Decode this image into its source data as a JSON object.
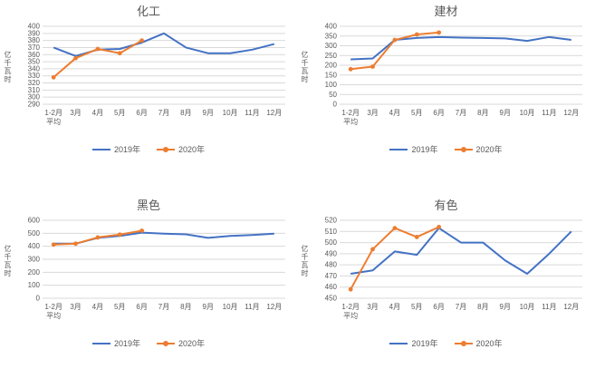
{
  "legend": {
    "s2019": "2019年",
    "s2020": "2020年"
  },
  "colors": {
    "series_2019": "#4472C4",
    "series_2020": "#ED7D31",
    "gridline": "#D9D9D9",
    "text": "#595959"
  },
  "chart_data": [
    {
      "type": "line",
      "title": "化工",
      "ylabel": "亿千瓦时",
      "categories": [
        "1-2月\n平均",
        "3月",
        "4月",
        "5月",
        "6月",
        "7月",
        "8月",
        "9月",
        "10月",
        "11月",
        "12月"
      ],
      "series": [
        {
          "name": "2019年",
          "markers": false,
          "values": [
            370,
            358,
            367,
            368,
            377,
            390,
            370,
            362,
            362,
            367,
            375
          ]
        },
        {
          "name": "2020年",
          "markers": true,
          "values": [
            328,
            355,
            368,
            362,
            380
          ]
        }
      ],
      "ylim": [
        290,
        400
      ],
      "ystep": 10,
      "grid": true,
      "legend_position": "bottom"
    },
    {
      "type": "line",
      "title": "建材",
      "ylabel": "亿千瓦时",
      "categories": [
        "1-2月\n平均",
        "3月",
        "4月",
        "5月",
        "6月",
        "7月",
        "8月",
        "9月",
        "10月",
        "11月",
        "12月"
      ],
      "series": [
        {
          "name": "2019年",
          "markers": false,
          "values": [
            230,
            235,
            330,
            340,
            345,
            342,
            340,
            338,
            325,
            345,
            330
          ]
        },
        {
          "name": "2020年",
          "markers": true,
          "values": [
            180,
            193,
            330,
            358,
            368
          ]
        }
      ],
      "ylim": [
        0,
        400
      ],
      "ystep": 50,
      "grid": true,
      "legend_position": "bottom"
    },
    {
      "type": "line",
      "title": "黑色",
      "ylabel": "亿千瓦时",
      "categories": [
        "1-2月\n平均",
        "3月",
        "4月",
        "5月",
        "6月",
        "7月",
        "8月",
        "9月",
        "10月",
        "11月",
        "12月"
      ],
      "series": [
        {
          "name": "2019年",
          "markers": false,
          "values": [
            420,
            420,
            465,
            480,
            505,
            497,
            492,
            465,
            480,
            487,
            497
          ]
        },
        {
          "name": "2020年",
          "markers": true,
          "values": [
            413,
            420,
            468,
            490,
            520
          ]
        }
      ],
      "ylim": [
        0,
        600
      ],
      "ystep": 100,
      "grid": true,
      "legend_position": "bottom"
    },
    {
      "type": "line",
      "title": "有色",
      "ylabel": "亿千瓦时",
      "categories": [
        "1-2月\n平均",
        "3月",
        "4月",
        "5月",
        "6月",
        "7月",
        "8月",
        "9月",
        "10月",
        "11月",
        "12月"
      ],
      "series": [
        {
          "name": "2019年",
          "markers": false,
          "values": [
            472,
            475,
            492,
            489,
            513,
            500,
            500,
            484,
            472,
            490,
            510
          ]
        },
        {
          "name": "2020年",
          "markers": true,
          "values": [
            458,
            494,
            513,
            505,
            514
          ]
        }
      ],
      "ylim": [
        450,
        520
      ],
      "ystep": 10,
      "grid": true,
      "legend_position": "bottom"
    }
  ]
}
